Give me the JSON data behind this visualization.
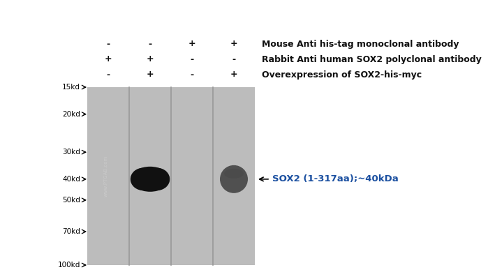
{
  "background_color": "#ffffff",
  "gel_bg_color": "#bbbbbb",
  "num_lanes": 4,
  "mw_markers": [
    "100kd",
    "70kd",
    "50kd",
    "40kd",
    "30kd",
    "20kd",
    "15kd"
  ],
  "mw_values": [
    100,
    70,
    50,
    40,
    30,
    20,
    15
  ],
  "watermark_text": "www.PTGAB.com",
  "watermark_color": "#cccccc",
  "band_dark_color": "#111111",
  "band_medium_color": "#444444",
  "annotation_text": "←  SOX2 (1-317aa);~40kDa",
  "annotation_color": "#1a4fa0",
  "annotation_fontsize": 9.5,
  "row1_signs": [
    "-",
    "+",
    "-",
    "+"
  ],
  "row2_signs": [
    "+",
    "+",
    "-",
    "-"
  ],
  "row3_signs": [
    "-",
    "-",
    "+",
    "+"
  ],
  "row1_label": "Overexpression of SOX2-his-myc",
  "row2_label": "Rabbit Anti human SOX2 polyclonal antibody",
  "row3_label": "Mouse Anti his-tag monoclonal antibody",
  "sign_color": "#111111",
  "label_color": "#111111",
  "sign_fontsize": 9,
  "label_fontsize": 9
}
